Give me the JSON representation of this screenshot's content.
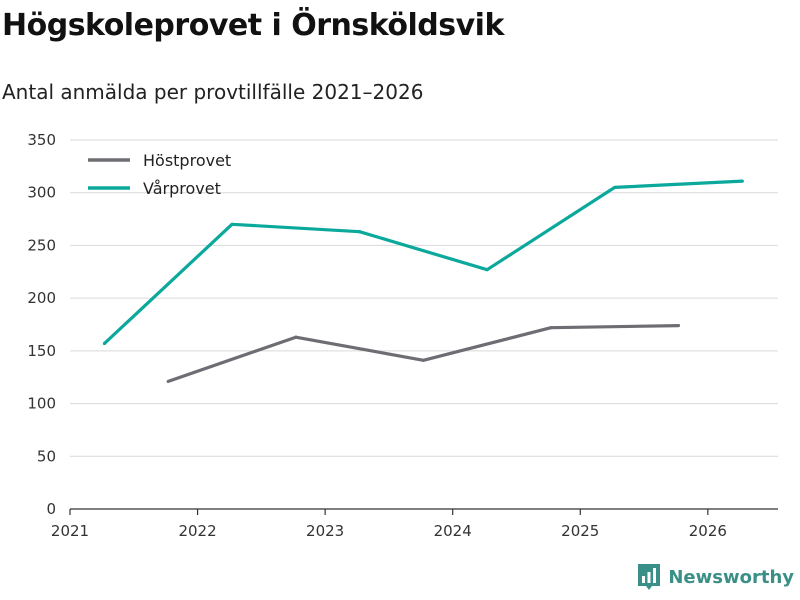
{
  "header": {
    "title": "Högskoleprovet i Örnsköldsvik",
    "subtitle": "Antal anmälda per provtillfälle 2021–2026"
  },
  "brand": {
    "name": "Newsworthy",
    "icon": "newsworthy-logo-icon"
  },
  "colors": {
    "hostprovet": "#6e6d74",
    "varprovet": "#0ba89c",
    "grid": "#d9d9d9",
    "axis": "#333333",
    "brand": "#3a8f86"
  },
  "chart_data": {
    "type": "line",
    "title": "Högskoleprovet i Örnsköldsvik",
    "subtitle": "Antal anmälda per provtillfälle 2021–2026",
    "xlabel": "",
    "ylabel": "",
    "xlim": [
      2021,
      2026.55
    ],
    "ylim": [
      0,
      350
    ],
    "x_ticks": [
      "2021",
      "2022",
      "2023",
      "2024",
      "2025",
      "2026"
    ],
    "y_ticks": [
      0,
      50,
      100,
      150,
      200,
      250,
      300,
      350
    ],
    "grid": true,
    "legend_position": "top-left",
    "series": [
      {
        "name": "Höstprovet",
        "color": "#6e6d74",
        "points": [
          {
            "x": 2021.77,
            "y": 121
          },
          {
            "x": 2022.77,
            "y": 163
          },
          {
            "x": 2023.77,
            "y": 141
          },
          {
            "x": 2024.77,
            "y": 172
          },
          {
            "x": 2025.77,
            "y": 174
          }
        ]
      },
      {
        "name": "Vårprovet",
        "color": "#0ba89c",
        "points": [
          {
            "x": 2021.27,
            "y": 157
          },
          {
            "x": 2022.27,
            "y": 270
          },
          {
            "x": 2023.27,
            "y": 263
          },
          {
            "x": 2024.27,
            "y": 227
          },
          {
            "x": 2025.27,
            "y": 305
          },
          {
            "x": 2026.27,
            "y": 311
          }
        ]
      }
    ]
  }
}
